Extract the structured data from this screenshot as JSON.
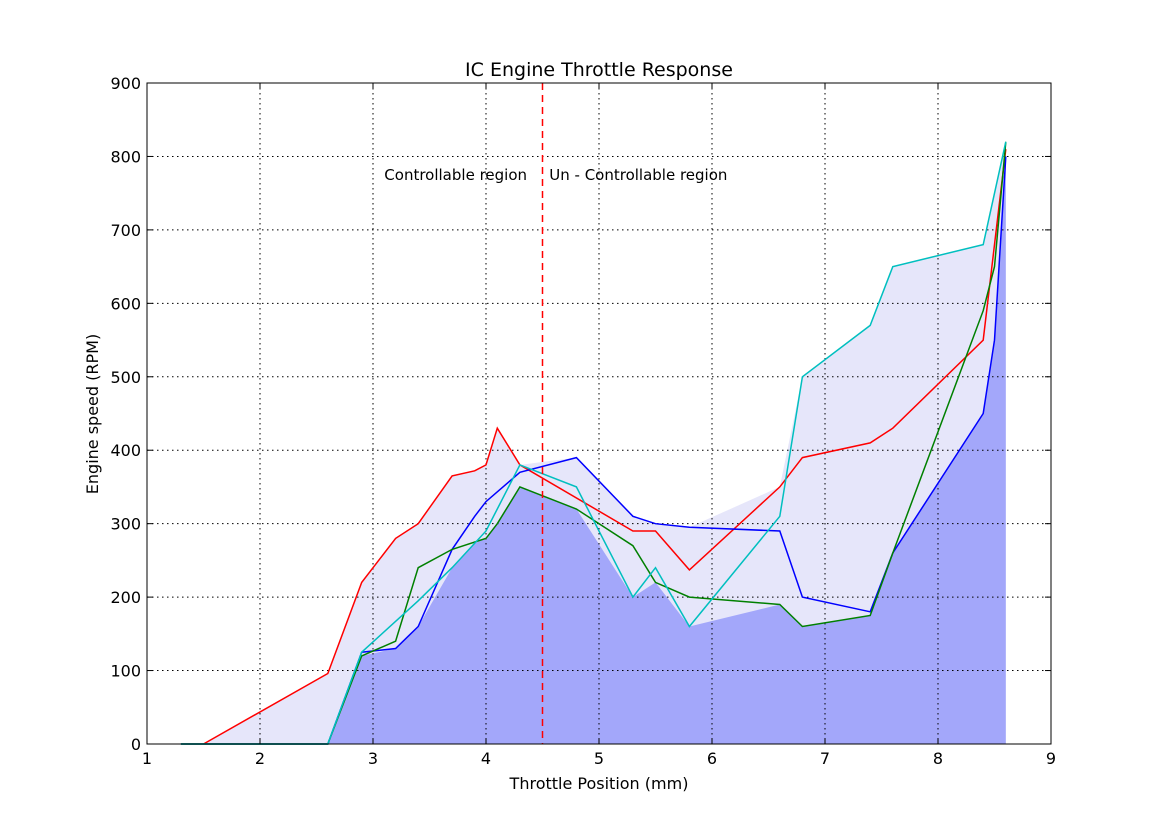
{
  "chart_data": {
    "type": "line",
    "title": "IC Engine Throttle Response",
    "xlabel": "Throttle Position (mm)",
    "ylabel": "Engine speed (RPM)",
    "xlim": [
      1,
      9
    ],
    "ylim": [
      0,
      900
    ],
    "xticks": [
      1,
      2,
      3,
      4,
      5,
      6,
      7,
      8,
      9
    ],
    "yticks": [
      0,
      100,
      200,
      300,
      400,
      500,
      600,
      700,
      800,
      900
    ],
    "grid": true,
    "grid_style": "dotted",
    "fills": [
      {
        "color": "#e6e6fa",
        "between": "envelope of all series",
        "note_only_visual": true
      },
      {
        "color": "#a3a7fa",
        "between": "lower envelope to 0"
      }
    ],
    "series": [
      {
        "color": "#ff0000",
        "x": [
          1.5,
          2.6,
          2.9,
          3.2,
          3.4,
          3.7,
          3.9,
          4.0,
          4.1,
          4.3,
          5.3,
          5.5,
          5.8,
          6.6,
          6.8,
          7.4,
          7.6,
          8.4,
          8.6
        ],
        "y": [
          0,
          96,
          220,
          280,
          300,
          365,
          372,
          380,
          430,
          380,
          290,
          290,
          237,
          350,
          390,
          410,
          430,
          550,
          810
        ]
      },
      {
        "color": "#0000ff",
        "x": [
          1.3,
          2.6,
          2.9,
          3.2,
          3.4,
          3.7,
          3.9,
          4.0,
          4.3,
          4.8,
          5.3,
          5.5,
          5.8,
          6.6,
          6.8,
          7.4,
          7.6,
          8.4,
          8.5,
          8.6
        ],
        "y": [
          0,
          0,
          125,
          130,
          160,
          265,
          310,
          330,
          370,
          390,
          310,
          300,
          295,
          290,
          200,
          180,
          260,
          450,
          550,
          800
        ]
      },
      {
        "color": "#008000",
        "x": [
          1.3,
          2.6,
          2.9,
          3.2,
          3.4,
          3.7,
          4.0,
          4.1,
          4.3,
          4.8,
          5.3,
          5.5,
          5.8,
          6.6,
          6.8,
          7.4,
          7.6,
          8.4,
          8.5,
          8.6
        ],
        "y": [
          0,
          0,
          120,
          140,
          240,
          265,
          280,
          300,
          350,
          320,
          270,
          220,
          200,
          190,
          160,
          175,
          260,
          590,
          650,
          820
        ]
      },
      {
        "color": "#00bfbf",
        "x": [
          1.3,
          2.6,
          2.9,
          3.4,
          3.7,
          4.0,
          4.3,
          4.8,
          5.3,
          5.5,
          5.8,
          6.6,
          6.8,
          7.4,
          7.6,
          8.4,
          8.6
        ],
        "y": [
          0,
          0,
          125,
          195,
          240,
          290,
          380,
          350,
          200,
          240,
          160,
          310,
          500,
          570,
          650,
          680,
          820
        ]
      }
    ],
    "vline": {
      "x": 4.5,
      "color": "#ff0000",
      "style": "dashed"
    },
    "annotations": [
      {
        "text": "Controllable region",
        "x": 3.1,
        "y": 775
      },
      {
        "text": "Un - Controllable region",
        "x": 4.56,
        "y": 775
      }
    ]
  }
}
